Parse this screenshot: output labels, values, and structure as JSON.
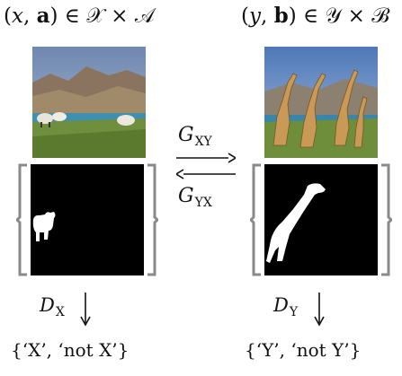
{
  "left_domain": {
    "var": "x",
    "mask_var": "a",
    "set1": "𝒳",
    "set2": "𝒜"
  },
  "right_domain": {
    "var": "y",
    "mask_var": "b",
    "set1": "𝒴",
    "set2": "ℬ"
  },
  "generators": {
    "forward": {
      "sym": "G",
      "sub": "XY"
    },
    "backward": {
      "sym": "G",
      "sub": "YX"
    }
  },
  "discriminators": {
    "left": {
      "sym": "D",
      "sub": "X",
      "outputs": "{‘X’, ‘not X’}"
    },
    "right": {
      "sym": "D",
      "sub": "Y",
      "outputs": "{‘Y’, ‘not Y’}"
    }
  }
}
